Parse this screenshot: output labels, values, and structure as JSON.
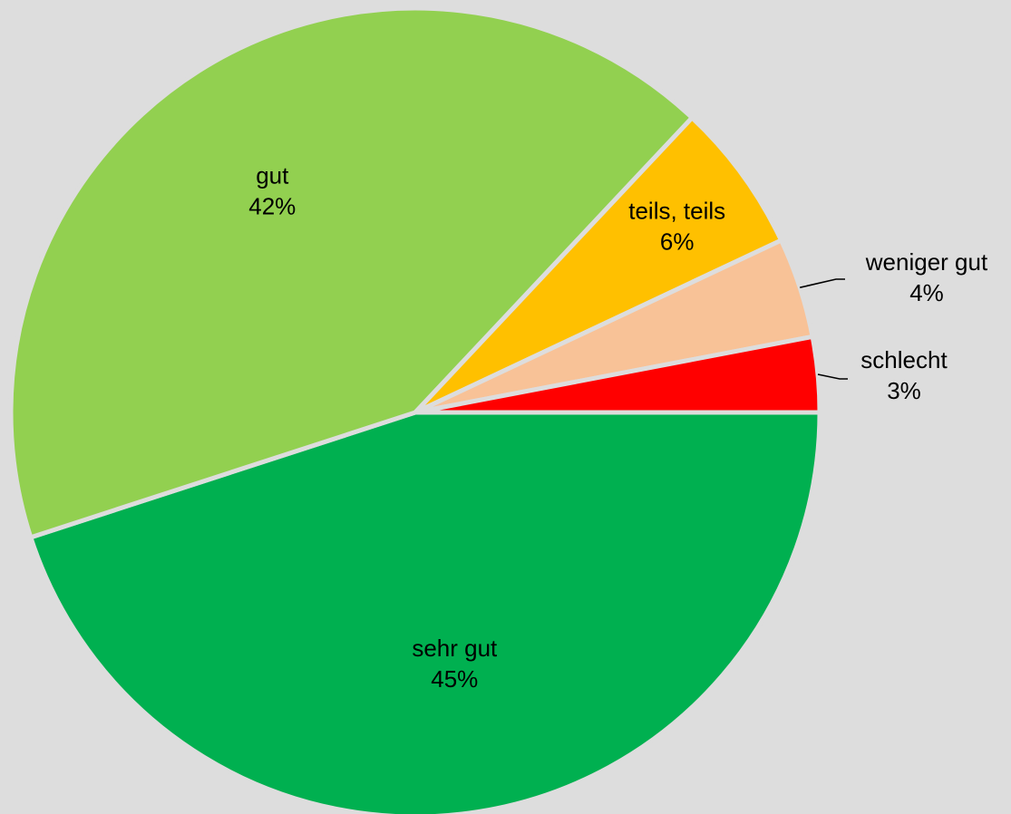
{
  "chart_data": {
    "type": "pie",
    "slices": [
      {
        "label": "sehr gut",
        "value": 45,
        "value_label": "45%",
        "color": "#00b050"
      },
      {
        "label": "gut",
        "value": 42,
        "value_label": "42%",
        "color": "#92d050"
      },
      {
        "label": "teils, teils",
        "value": 6,
        "value_label": "6%",
        "color": "#ffc000"
      },
      {
        "label": "weniger gut",
        "value": 4,
        "value_label": "4%",
        "color": "#f8c297"
      },
      {
        "label": "schlecht",
        "value": 3,
        "value_label": "3%",
        "color": "#ff0000"
      }
    ],
    "start_angle_deg": 0,
    "direction": "clockwise",
    "background": "#dddddd",
    "slice_separator_color": "#dddddd",
    "legend": "none"
  }
}
